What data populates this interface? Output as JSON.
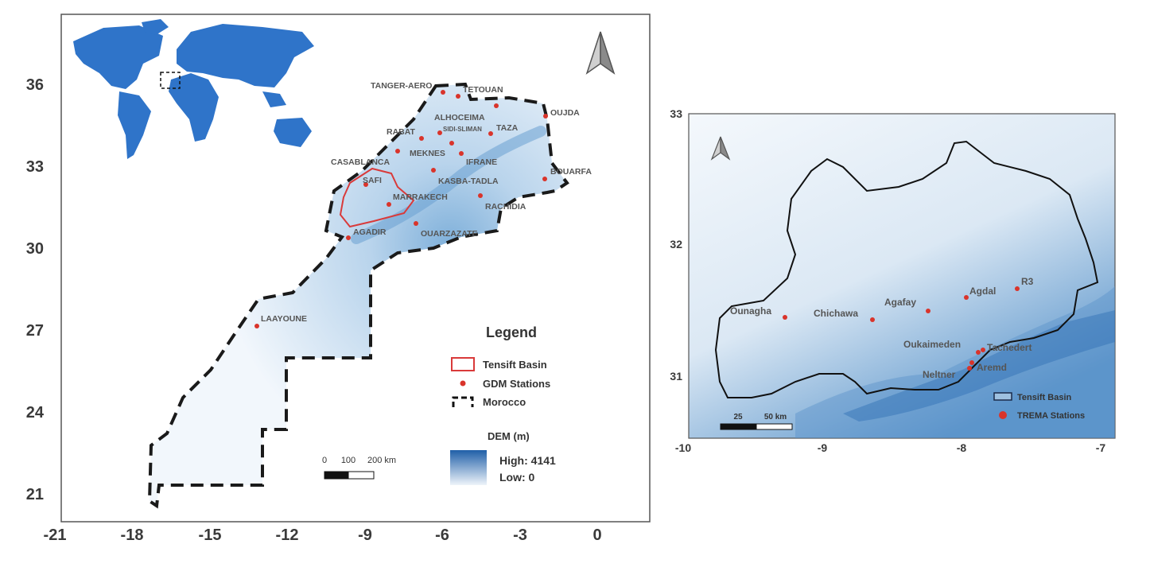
{
  "left_map": {
    "x_ticks": [
      "-21",
      "-18",
      "-15",
      "-12",
      "-9",
      "-6",
      "-3",
      "0"
    ],
    "y_ticks": [
      "36",
      "33",
      "30",
      "27",
      "24",
      "21"
    ],
    "stations": [
      "TANGER-AERO",
      "TETOUAN",
      "OUJDA",
      "ALHOCEIMA",
      "SIDI-SLIMAN",
      "TAZA",
      "RABAT",
      "MEKNES",
      "CASABLANCA",
      "IFRANE",
      "BOUARFA",
      "SAFI",
      "KASBA-TADLA",
      "MARRAKECH",
      "RACHIDIA",
      "AGADIR",
      "OUARZAZATE",
      "LAAYOUNE"
    ],
    "legend": {
      "title": "Legend",
      "items": [
        "Tensift Basin",
        "GDM Stations",
        "Morocco"
      ],
      "dem_title": "DEM (m)",
      "dem_high": "High: 4141",
      "dem_low": "Low: 0"
    },
    "scale": {
      "labels": [
        "0",
        "100",
        "200 km"
      ]
    },
    "colors": {
      "ocean_world": "#2f74c9",
      "dem_high": "#1f5fa8",
      "dem_low": "#eef4fa",
      "basin": "#d93a3a",
      "station": "#d9342b"
    }
  },
  "right_map": {
    "x_ticks": [
      "-10",
      "-9",
      "-8",
      "-7"
    ],
    "y_ticks": [
      "33",
      "32",
      "31"
    ],
    "stations": [
      "Ounagha",
      "Chichawa",
      "Agafay",
      "Agdal",
      "R3",
      "Oukaimeden",
      "Tachedert",
      "Aremd",
      "Neltner"
    ],
    "legend": {
      "items": [
        "Tensift Basin",
        "TREMA Stations"
      ]
    },
    "scale": {
      "labels": [
        "25",
        "50 km"
      ]
    }
  }
}
